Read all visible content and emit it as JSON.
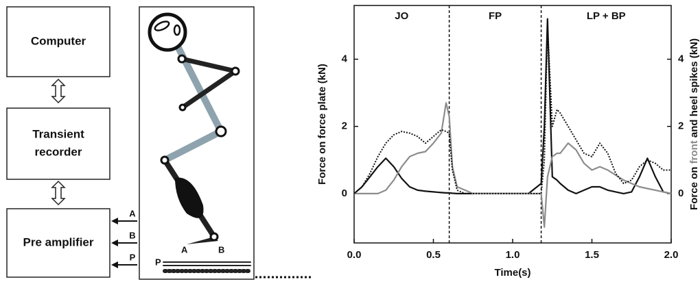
{
  "diagram": {
    "boxes": [
      {
        "label": [
          "Computer"
        ]
      },
      {
        "label": [
          "Transient",
          "recorder"
        ]
      },
      {
        "label": [
          "Pre amplifier"
        ]
      }
    ],
    "input_labels": [
      "A",
      "B",
      "P"
    ],
    "figure_labels": {
      "heel": "A",
      "toe": "B",
      "plate": "P"
    }
  },
  "chart_data": {
    "type": "line",
    "xlabel": "Time(s)",
    "ylabel": "Force on force plate (kN)",
    "y2label_parts": [
      "Force on ",
      "front",
      " and heel spikes (kN)"
    ],
    "y2label_colors": [
      "#111111",
      "#8c8c8c",
      "#111111"
    ],
    "annotations": [
      "JO",
      "FP",
      "LP + BP"
    ],
    "vlines": [
      0.6,
      1.18
    ],
    "xlim": [
      0,
      2.0
    ],
    "xticks": [
      {
        "value": 0,
        "label": "0.0"
      },
      0.5,
      {
        "value": 1,
        "label": "1.0"
      },
      1.5,
      {
        "value": 2,
        "label": "2.0"
      }
    ],
    "ylim": [
      -1.47,
      5.6
    ],
    "yticks": [
      0,
      2,
      4
    ],
    "y2lim": [
      -1.47,
      5.6
    ],
    "y2ticks": [
      0,
      2,
      4
    ],
    "x": [
      0,
      0.05,
      0.1,
      0.15,
      0.2,
      0.25,
      0.3,
      0.35,
      0.4,
      0.45,
      0.5,
      0.55,
      0.58,
      0.6,
      0.62,
      0.65,
      0.7,
      0.75,
      0.8,
      0.9,
      1.0,
      1.1,
      1.18,
      1.2,
      1.22,
      1.25,
      1.28,
      1.3,
      1.35,
      1.4,
      1.45,
      1.5,
      1.55,
      1.6,
      1.65,
      1.7,
      1.75,
      1.8,
      1.85,
      1.9,
      1.95,
      2.0
    ],
    "series": [
      {
        "color": "#111111",
        "dash": "solid",
        "values": [
          0,
          0.2,
          0.5,
          0.8,
          1.05,
          0.8,
          0.45,
          0.2,
          0.1,
          0.07,
          0.05,
          0.03,
          0.02,
          0.02,
          0.01,
          0,
          0,
          0,
          0,
          0,
          0,
          0,
          0.3,
          2.0,
          5.2,
          0.5,
          0.4,
          0.3,
          0.1,
          0.0,
          0.1,
          0.2,
          0.2,
          0.1,
          0.05,
          0.0,
          0.05,
          0.5,
          1.05,
          0.5,
          0.05,
          0
        ]
      },
      {
        "color": "#8c8c8c",
        "dash": "solid",
        "axis": "y2",
        "values": [
          0,
          0,
          0,
          0,
          0.1,
          0.4,
          0.8,
          1.1,
          1.2,
          1.25,
          1.5,
          1.8,
          2.7,
          2.3,
          0.8,
          0.2,
          0.1,
          0,
          0,
          0,
          0,
          0,
          0,
          -1.0,
          0.5,
          1.1,
          1.2,
          1.2,
          1.5,
          1.3,
          0.9,
          0.7,
          0.8,
          0.7,
          0.55,
          0.4,
          0.3,
          0.2,
          0.15,
          0.1,
          0.05,
          0.0
        ]
      },
      {
        "color": "#111111",
        "dash": "dotted",
        "axis": "y2",
        "values": [
          0,
          0.2,
          0.6,
          1.1,
          1.5,
          1.75,
          1.85,
          1.8,
          1.7,
          1.5,
          1.7,
          1.9,
          1.85,
          1.8,
          0.7,
          0.1,
          0,
          0,
          0,
          0,
          0,
          0,
          0,
          1.0,
          5.0,
          2.0,
          2.5,
          2.4,
          2.0,
          1.6,
          1.2,
          1.1,
          1.5,
          1.2,
          0.6,
          0.3,
          0.4,
          0.8,
          1.0,
          0.9,
          0.7,
          0.7
        ]
      }
    ]
  }
}
